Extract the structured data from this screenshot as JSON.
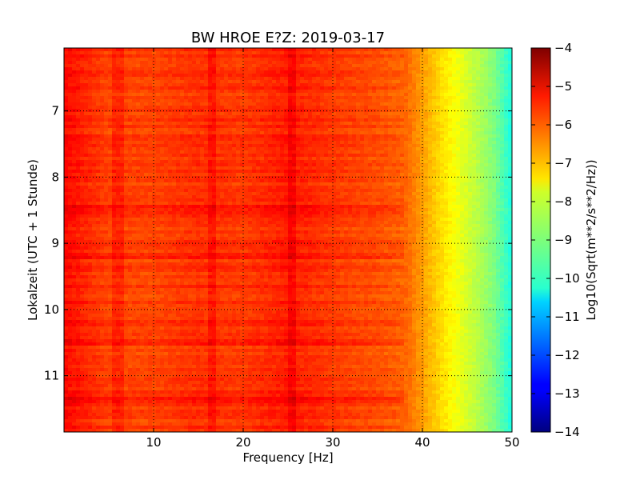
{
  "chart_data": {
    "type": "heatmap",
    "title": "BW HROE E?Z: 2019-03-17",
    "xlabel": "Frequency [Hz]",
    "ylabel": "Lokalzeit (UTC + 1 Stunde)",
    "xlim": [
      0,
      50
    ],
    "ylim": [
      11.85,
      6.05
    ],
    "x_ticks": [
      10,
      20,
      30,
      40,
      50
    ],
    "y_ticks": [
      7,
      8,
      9,
      10,
      11
    ],
    "grid": true,
    "colormap": "jet",
    "colorbar": {
      "label": "Log10(Sqrt(m**2/s**2/Hz))",
      "min": -14,
      "max": -4,
      "ticks": [
        -4,
        -5,
        -6,
        -7,
        -8,
        -9,
        -10,
        -11,
        -12,
        -13,
        -14
      ]
    },
    "approx_level_by_frequency": {
      "frequency_hz": [
        0,
        5,
        10,
        15,
        20,
        25,
        30,
        35,
        38,
        40,
        42,
        44,
        46,
        48,
        50
      ],
      "log10_amplitude": [
        -5.3,
        -5.9,
        -5.9,
        -5.7,
        -5.8,
        -5.5,
        -5.8,
        -6.0,
        -6.2,
        -6.8,
        -7.4,
        -7.9,
        -8.4,
        -9.0,
        -10.0
      ]
    },
    "notable_features": {
      "frequency_lines_hz": [
        6,
        16.5,
        25.5
      ],
      "stronger_time_bands": [
        8.5,
        9.2,
        10.2,
        10.5,
        11.4
      ]
    }
  }
}
